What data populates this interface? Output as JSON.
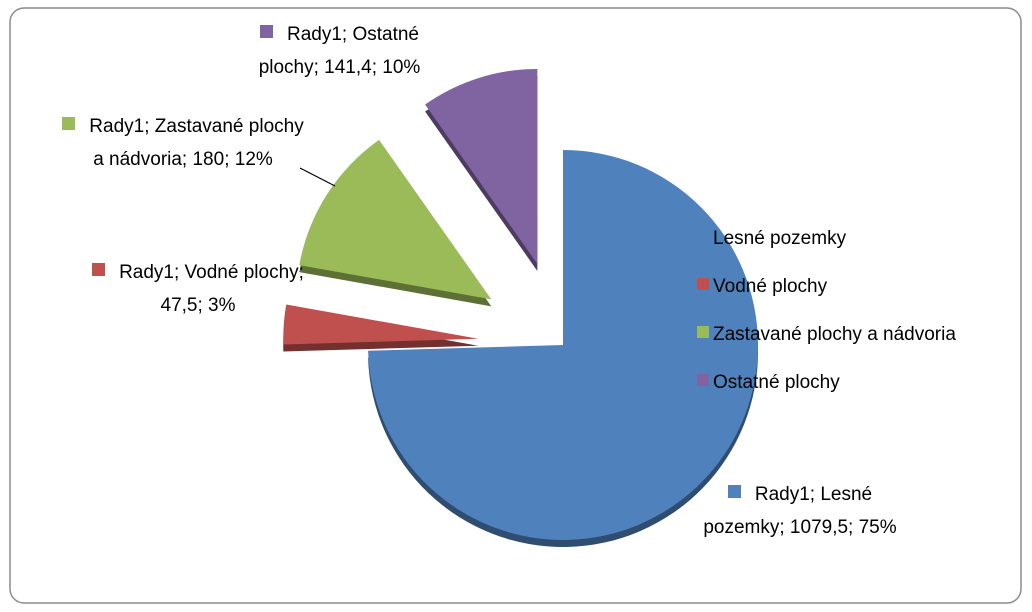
{
  "chart_data": {
    "type": "pie",
    "categories": [
      "Lesné pozemky",
      "Vodné plochy",
      "Zastavané plochy a nádvoria",
      "Ostatné plochy"
    ],
    "series": [
      {
        "name": "Rady1",
        "colors": [
          "#4f81bd",
          "#c0504d",
          "#9bbb59",
          "#8064a2"
        ],
        "values": [
          1079.5,
          47.5,
          180,
          141.4
        ],
        "value_labels": [
          "Rady1; Lesné pozemky; 1079,5; 75%",
          "Rady1; Vodné plochy; 47,5; 3%",
          "Rady1; Zastavané plochy a nádvoria; 180; 12%",
          "Rady1; Ostatné plochy; 141,4; 10%"
        ]
      }
    ],
    "legend": "right"
  }
}
